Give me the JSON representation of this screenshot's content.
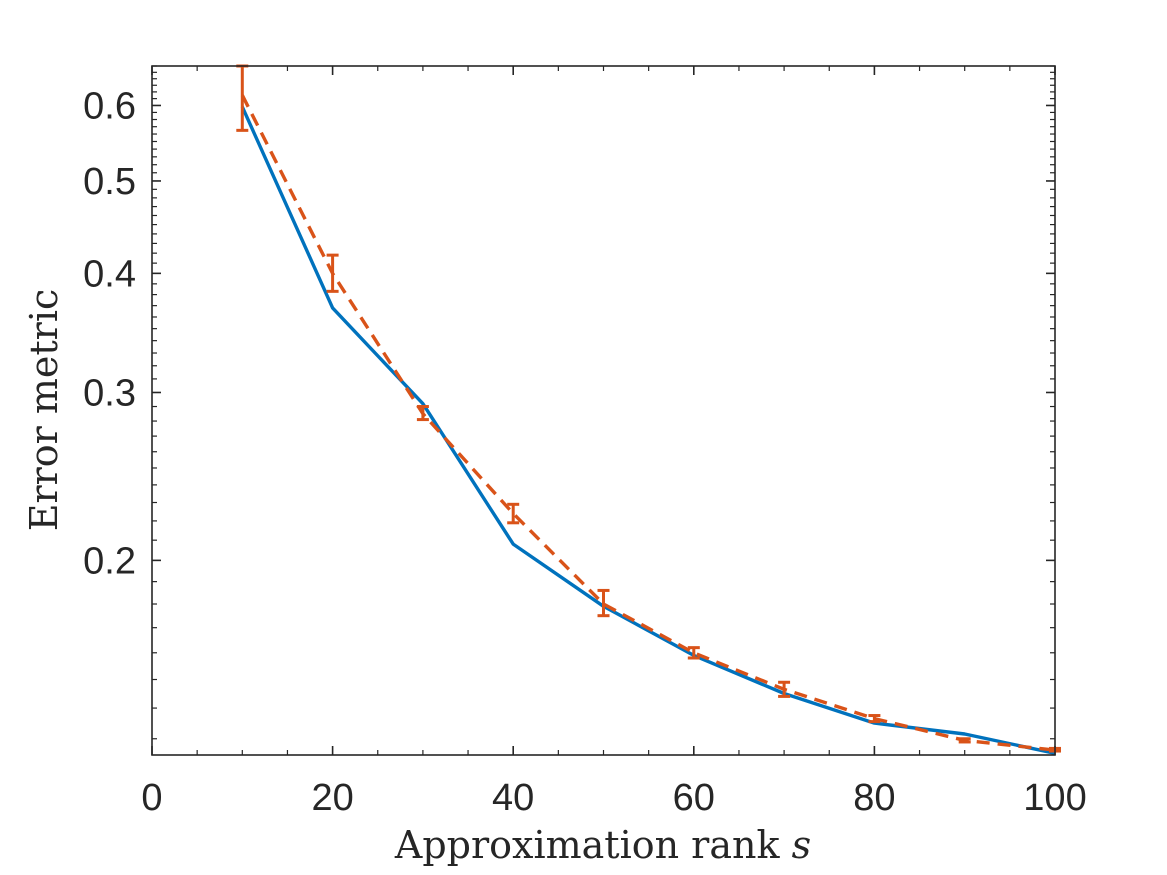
{
  "chart_data": {
    "type": "line",
    "title": "",
    "xlabel": "Approximation rank",
    "xlabel_variable": "s",
    "ylabel": "Error metric",
    "xlim": [
      0,
      100
    ],
    "ylim": [
      0.125,
      0.66
    ],
    "yscale": "log",
    "grid": false,
    "legend": "none",
    "x_ticks": [
      0,
      20,
      40,
      60,
      80,
      100
    ],
    "x_tick_labels": [
      "0",
      "20",
      "40",
      "60",
      "80",
      "100"
    ],
    "y_ticks": [
      0.2,
      0.3,
      0.4,
      0.5,
      0.6
    ],
    "y_tick_labels": [
      "0.2",
      "0.3",
      "0.4",
      "0.5",
      "0.6"
    ],
    "series": [
      {
        "style": "solid",
        "color": "#0072BD",
        "x": [
          10,
          20,
          30,
          40,
          50,
          60,
          70,
          80,
          90,
          100
        ],
        "y": [
          0.598,
          0.368,
          0.292,
          0.208,
          0.179,
          0.159,
          0.145,
          0.135,
          0.1315,
          0.1255
        ]
      },
      {
        "style": "dashed",
        "color": "#D95319",
        "x": [
          10,
          20,
          30,
          40,
          50,
          60,
          70,
          80,
          90,
          100
        ],
        "y": [
          0.615,
          0.4,
          0.285,
          0.224,
          0.18,
          0.16,
          0.1465,
          0.1365,
          0.1295,
          0.1265
        ],
        "y_err_low": [
          0.565,
          0.383,
          0.281,
          0.219,
          0.175,
          0.158,
          0.144,
          0.1355,
          0.129,
          0.1262
        ],
        "y_err_high": [
          0.66,
          0.418,
          0.29,
          0.229,
          0.186,
          0.162,
          0.149,
          0.1375,
          0.13,
          0.127
        ]
      }
    ]
  }
}
